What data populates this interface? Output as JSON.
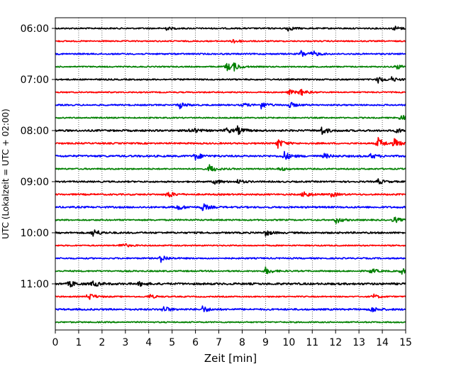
{
  "chart_data": {
    "type": "line",
    "title": "",
    "xlabel": "Zeit  [min]",
    "ylabel": "UTC (Lokalzeit = UTC + 02:00)",
    "xlim": [
      0,
      15
    ],
    "x_ticks": [
      0,
      1,
      2,
      3,
      4,
      5,
      6,
      7,
      8,
      9,
      10,
      11,
      12,
      13,
      14,
      15
    ],
    "y_tick_labels": [
      "06:00",
      "07:00",
      "08:00",
      "09:00",
      "10:00",
      "11:00"
    ],
    "y_tick_rows": [
      0,
      4,
      8,
      12,
      16,
      20
    ],
    "grid": "vertical dotted",
    "legend": "none",
    "line_colors": [
      "#000000",
      "#ff0000",
      "#0000ff",
      "#008000"
    ],
    "rows": [
      {
        "label": "06:00",
        "color": "#000000",
        "base": 0.45,
        "events": [
          [
            4.7,
            1.2
          ],
          [
            9.9,
            2.0
          ],
          [
            14.5,
            1.6
          ]
        ]
      },
      {
        "label": "06:15",
        "color": "#ff0000",
        "base": 0.4,
        "events": [
          [
            7.6,
            1.8
          ]
        ]
      },
      {
        "label": "06:30",
        "color": "#0000ff",
        "base": 0.45,
        "events": [
          [
            10.5,
            2.4
          ],
          [
            11.0,
            2.0
          ]
        ]
      },
      {
        "label": "06:45",
        "color": "#008000",
        "base": 0.4,
        "events": [
          [
            7.3,
            3.2
          ],
          [
            7.6,
            2.6
          ],
          [
            14.6,
            1.8
          ]
        ]
      },
      {
        "label": "07:00",
        "color": "#000000",
        "base": 0.45,
        "events": [
          [
            13.8,
            2.4
          ],
          [
            14.4,
            1.4
          ]
        ]
      },
      {
        "label": "07:15",
        "color": "#ff0000",
        "base": 0.4,
        "events": [
          [
            10.0,
            1.8
          ],
          [
            10.5,
            2.2
          ]
        ]
      },
      {
        "label": "07:30",
        "color": "#0000ff",
        "base": 0.45,
        "events": [
          [
            5.3,
            2.4
          ],
          [
            8.0,
            1.6
          ],
          [
            8.8,
            2.6
          ],
          [
            10.0,
            2.2
          ]
        ]
      },
      {
        "label": "07:45",
        "color": "#008000",
        "base": 0.4,
        "events": [
          [
            14.8,
            2.4
          ]
        ]
      },
      {
        "label": "08:00",
        "color": "#000000",
        "base": 0.6,
        "events": [
          [
            5.8,
            2.4
          ],
          [
            7.3,
            1.8
          ],
          [
            7.8,
            2.4
          ],
          [
            11.4,
            2.6
          ],
          [
            14.6,
            1.6
          ]
        ]
      },
      {
        "label": "08:15",
        "color": "#ff0000",
        "base": 0.5,
        "events": [
          [
            9.5,
            3.6
          ],
          [
            13.8,
            4.0
          ],
          [
            14.5,
            3.0
          ]
        ]
      },
      {
        "label": "08:30",
        "color": "#0000ff",
        "base": 0.6,
        "events": [
          [
            6.0,
            2.4
          ],
          [
            9.8,
            3.0
          ],
          [
            11.5,
            1.6
          ],
          [
            13.5,
            1.6
          ]
        ]
      },
      {
        "label": "08:45",
        "color": "#008000",
        "base": 0.45,
        "events": [
          [
            6.6,
            2.8
          ],
          [
            9.6,
            1.4
          ]
        ]
      },
      {
        "label": "09:00",
        "color": "#000000",
        "base": 0.5,
        "events": [
          [
            6.8,
            2.0
          ],
          [
            7.8,
            1.4
          ],
          [
            13.8,
            1.8
          ]
        ]
      },
      {
        "label": "09:15",
        "color": "#ff0000",
        "base": 0.5,
        "events": [
          [
            4.8,
            2.4
          ],
          [
            10.6,
            2.8
          ],
          [
            11.8,
            1.8
          ]
        ]
      },
      {
        "label": "09:30",
        "color": "#0000ff",
        "base": 0.55,
        "events": [
          [
            5.2,
            2.2
          ],
          [
            6.3,
            2.4
          ]
        ]
      },
      {
        "label": "09:45",
        "color": "#008000",
        "base": 0.45,
        "events": [
          [
            12.0,
            2.4
          ],
          [
            14.5,
            2.0
          ]
        ]
      },
      {
        "label": "10:00",
        "color": "#000000",
        "base": 0.55,
        "events": [
          [
            1.6,
            2.8
          ],
          [
            9.0,
            1.8
          ]
        ]
      },
      {
        "label": "10:15",
        "color": "#ff0000",
        "base": 0.4,
        "events": [
          [
            2.8,
            2.2
          ]
        ]
      },
      {
        "label": "10:30",
        "color": "#0000ff",
        "base": 0.45,
        "events": [
          [
            4.5,
            2.8
          ]
        ]
      },
      {
        "label": "10:45",
        "color": "#008000",
        "base": 0.45,
        "events": [
          [
            9.0,
            2.4
          ],
          [
            13.5,
            1.8
          ],
          [
            14.8,
            2.0
          ]
        ]
      },
      {
        "label": "11:00",
        "color": "#000000",
        "base": 0.65,
        "events": [
          [
            0.6,
            2.2
          ],
          [
            1.6,
            2.0
          ],
          [
            3.6,
            1.4
          ]
        ]
      },
      {
        "label": "11:15",
        "color": "#ff0000",
        "base": 0.4,
        "events": [
          [
            1.4,
            2.8
          ],
          [
            4.0,
            1.6
          ],
          [
            13.6,
            1.6
          ]
        ]
      },
      {
        "label": "11:30",
        "color": "#0000ff",
        "base": 0.55,
        "events": [
          [
            4.6,
            2.4
          ],
          [
            6.3,
            2.2
          ],
          [
            13.5,
            2.2
          ]
        ]
      },
      {
        "label": "11:45",
        "color": "#008000",
        "base": 0.4,
        "events": []
      }
    ]
  }
}
